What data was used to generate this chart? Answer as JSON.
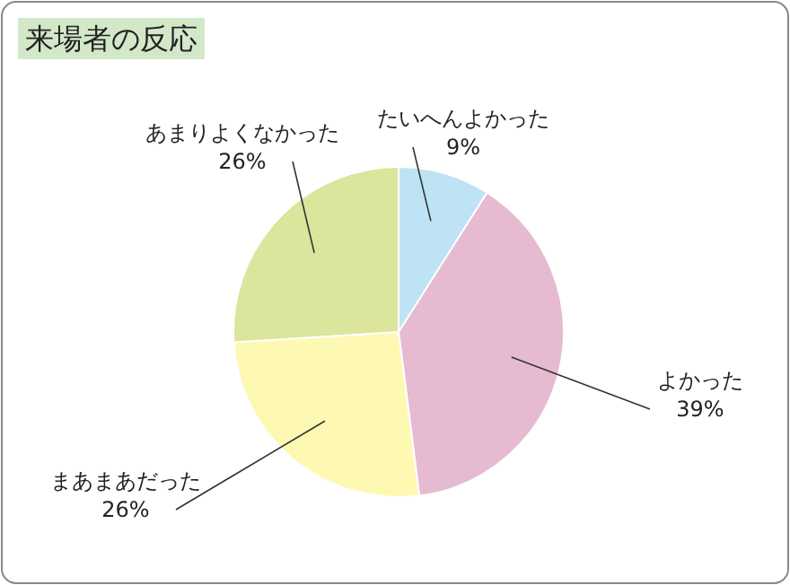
{
  "chart_data": {
    "type": "pie",
    "title": "来場者の反応",
    "categories": [
      "たいへんよかった",
      "よかった",
      "まあまあだった",
      "あまりよくなかった"
    ],
    "values": [
      9,
      39,
      26,
      26
    ],
    "value_labels": [
      "9%",
      "39%",
      "26%",
      "26%"
    ],
    "colors": [
      "#bde3f4",
      "#e6bbd1",
      "#fdf9b3",
      "#dbe59c"
    ]
  }
}
